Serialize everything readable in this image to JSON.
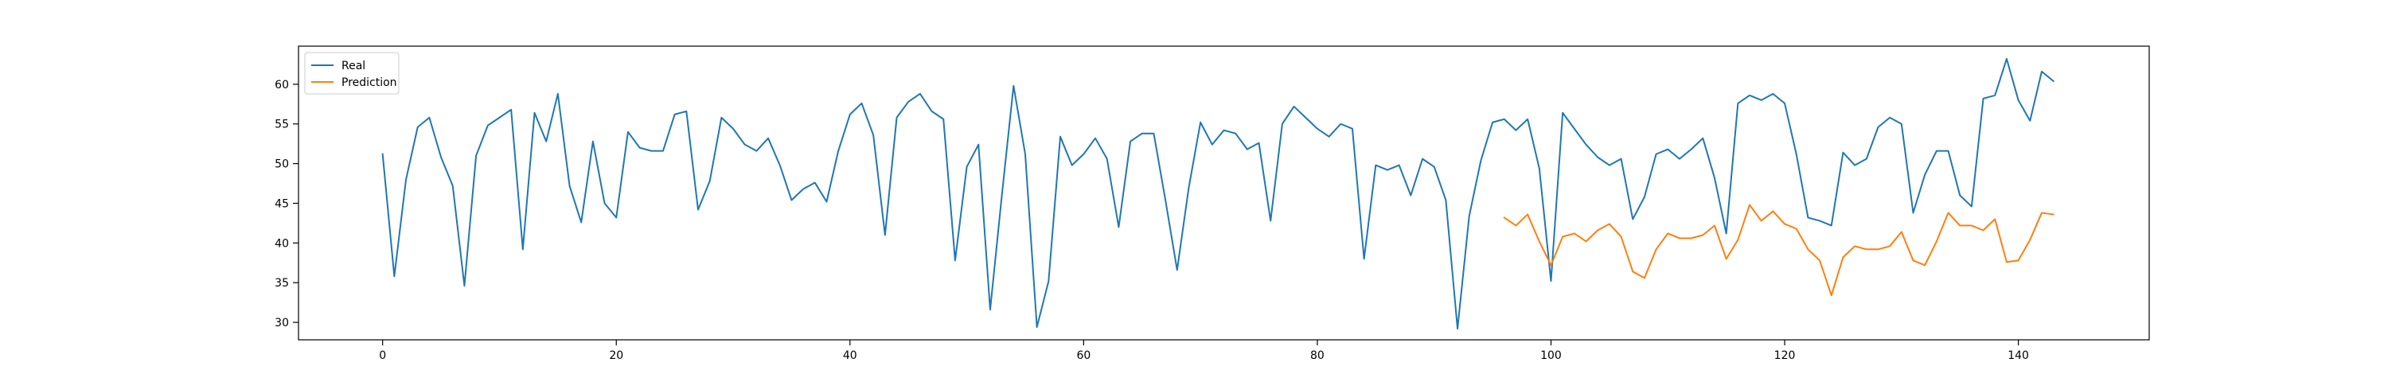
{
  "chart_data": {
    "type": "line",
    "title": "",
    "xlabel": "",
    "ylabel": "",
    "xlim": [
      -7.2,
      151.2
    ],
    "ylim": [
      27.8,
      64.8
    ],
    "xticks": [
      0,
      20,
      40,
      60,
      80,
      100,
      120,
      140
    ],
    "yticks": [
      30,
      35,
      40,
      45,
      50,
      55,
      60
    ],
    "grid": false,
    "legend": "upper-left",
    "series": [
      {
        "name": "Real",
        "color": "#1f77b4",
        "x_start": 0,
        "values": [
          51.2,
          35.8,
          48.0,
          54.6,
          55.8,
          50.8,
          47.2,
          34.6,
          51.0,
          54.8,
          55.8,
          56.8,
          39.2,
          56.4,
          52.8,
          58.8,
          47.2,
          42.6,
          52.8,
          45.0,
          43.2,
          54.0,
          52.0,
          51.6,
          51.6,
          56.2,
          56.6,
          44.2,
          47.8,
          55.8,
          54.4,
          52.4,
          51.6,
          53.2,
          49.8,
          45.4,
          46.8,
          47.6,
          45.2,
          51.6,
          56.2,
          57.6,
          53.6,
          41.0,
          55.8,
          57.8,
          58.8,
          56.6,
          55.6,
          37.8,
          49.6,
          52.4,
          31.6,
          46.0,
          59.8,
          51.2,
          29.4,
          35.2,
          53.4,
          49.8,
          51.2,
          53.2,
          50.6,
          42.0,
          52.8,
          53.8,
          53.8,
          45.4,
          36.6,
          47.0,
          55.2,
          52.4,
          54.2,
          53.8,
          51.8,
          52.6,
          42.8,
          55.0,
          57.2,
          55.8,
          54.4,
          53.4,
          55.0,
          54.4,
          38.0,
          49.8,
          49.2,
          49.8,
          46.0,
          50.6,
          49.6,
          45.4,
          29.2,
          43.4,
          50.4,
          55.2,
          55.6,
          54.2,
          55.6,
          49.4,
          35.2,
          56.4,
          54.4,
          52.4,
          50.8,
          49.8,
          50.6,
          43.0,
          45.8,
          51.2,
          51.8,
          50.6,
          51.8,
          53.2,
          48.2,
          41.2,
          57.6,
          58.6,
          58.0,
          58.8,
          57.6,
          51.2,
          43.2,
          42.8,
          42.2,
          51.4,
          49.8,
          50.6,
          54.6,
          55.8,
          55.0,
          43.8,
          48.6,
          51.6,
          51.6,
          46.0,
          44.6,
          58.2,
          58.6,
          63.2,
          58.0,
          55.4,
          61.6,
          60.4
        ]
      },
      {
        "name": "Prediction",
        "color": "#ff7f0e",
        "x_start": 96,
        "values": [
          43.2,
          42.2,
          43.6,
          40.2,
          37.2,
          40.8,
          41.2,
          40.2,
          41.6,
          42.4,
          40.8,
          36.4,
          35.6,
          39.2,
          41.2,
          40.6,
          40.6,
          41.0,
          42.2,
          38.0,
          40.4,
          44.8,
          42.8,
          44.0,
          42.4,
          41.8,
          39.2,
          37.8,
          33.4,
          38.2,
          39.6,
          39.2,
          39.2,
          39.6,
          41.4,
          37.8,
          37.2,
          40.2,
          43.8,
          42.2,
          42.2,
          41.6,
          43.0,
          37.6,
          37.8,
          40.4,
          43.8,
          43.6
        ]
      }
    ]
  }
}
